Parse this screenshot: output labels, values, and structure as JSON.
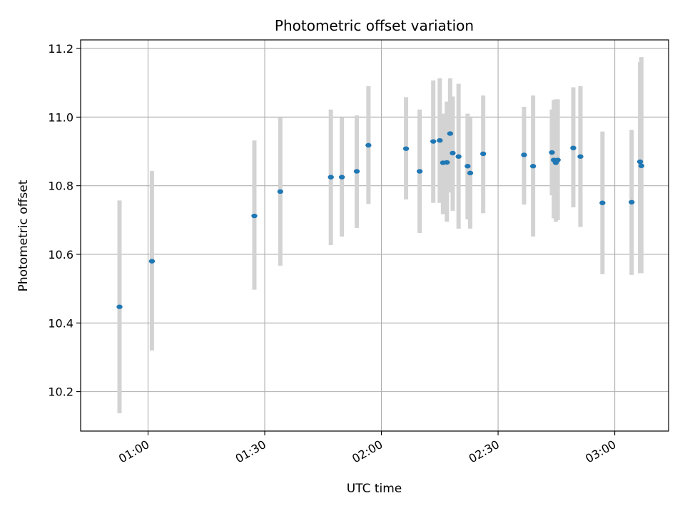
{
  "chart_data": {
    "type": "scatter",
    "title": "Photometric offset variation",
    "xlabel": "UTC time",
    "ylabel": "Photometric offset",
    "x_ticks": [
      "01:00",
      "01:30",
      "02:00",
      "02:30",
      "03:00"
    ],
    "y_ticks": [
      "10.2",
      "10.4",
      "10.6",
      "10.8",
      "11.0",
      "11.2"
    ],
    "xlim": [
      "00:42:40",
      "03:13:50"
    ],
    "ylim": [
      10.085,
      11.225
    ],
    "grid": true,
    "colors": {
      "point": "#1f77b4",
      "errorbar": "#d3d3d3",
      "grid": "#b0b0b0",
      "axis": "#000000"
    },
    "points": [
      {
        "time": "00:52:40",
        "y": 10.447,
        "low": 10.137,
        "high": 10.757
      },
      {
        "time": "01:01:00",
        "y": 10.58,
        "low": 10.32,
        "high": 10.843
      },
      {
        "time": "01:27:20",
        "y": 10.712,
        "low": 10.497,
        "high": 10.932
      },
      {
        "time": "01:34:00",
        "y": 10.783,
        "low": 10.567,
        "high": 11.0
      },
      {
        "time": "01:47:00",
        "y": 10.825,
        "low": 10.627,
        "high": 11.022
      },
      {
        "time": "01:49:50",
        "y": 10.825,
        "low": 10.652,
        "high": 11.0
      },
      {
        "time": "01:53:40",
        "y": 10.842,
        "low": 10.677,
        "high": 11.005
      },
      {
        "time": "01:56:40",
        "y": 10.918,
        "low": 10.747,
        "high": 11.09
      },
      {
        "time": "02:06:20",
        "y": 10.908,
        "low": 10.76,
        "high": 11.058
      },
      {
        "time": "02:09:50",
        "y": 10.842,
        "low": 10.662,
        "high": 11.022
      },
      {
        "time": "02:13:20",
        "y": 10.929,
        "low": 10.75,
        "high": 11.107
      },
      {
        "time": "02:15:00",
        "y": 10.932,
        "low": 10.75,
        "high": 11.113
      },
      {
        "time": "02:15:50",
        "y": 10.867,
        "low": 10.717,
        "high": 11.01
      },
      {
        "time": "02:16:50",
        "y": 10.868,
        "low": 10.695,
        "high": 11.045
      },
      {
        "time": "02:17:40",
        "y": 10.952,
        "low": 10.78,
        "high": 11.113
      },
      {
        "time": "02:18:20",
        "y": 10.895,
        "low": 10.727,
        "high": 11.06
      },
      {
        "time": "02:19:50",
        "y": 10.885,
        "low": 10.675,
        "high": 11.097
      },
      {
        "time": "02:22:10",
        "y": 10.857,
        "low": 10.702,
        "high": 11.01
      },
      {
        "time": "02:22:50",
        "y": 10.837,
        "low": 10.675,
        "high": 11.0
      },
      {
        "time": "02:26:10",
        "y": 10.893,
        "low": 10.72,
        "high": 11.063
      },
      {
        "time": "02:36:40",
        "y": 10.89,
        "low": 10.745,
        "high": 11.03
      },
      {
        "time": "02:39:00",
        "y": 10.857,
        "low": 10.652,
        "high": 11.063
      },
      {
        "time": "02:43:50",
        "y": 10.897,
        "low": 10.772,
        "high": 11.022
      },
      {
        "time": "02:44:20",
        "y": 10.875,
        "low": 10.705,
        "high": 11.05
      },
      {
        "time": "02:44:50",
        "y": 10.867,
        "low": 10.695,
        "high": 11.052
      },
      {
        "time": "02:45:20",
        "y": 10.875,
        "low": 10.7,
        "high": 11.052
      },
      {
        "time": "02:49:20",
        "y": 10.91,
        "low": 10.737,
        "high": 11.087
      },
      {
        "time": "02:51:10",
        "y": 10.885,
        "low": 10.68,
        "high": 11.09
      },
      {
        "time": "02:56:50",
        "y": 10.75,
        "low": 10.542,
        "high": 10.958
      },
      {
        "time": "03:04:20",
        "y": 10.752,
        "low": 10.54,
        "high": 10.963
      },
      {
        "time": "03:06:30",
        "y": 10.87,
        "low": 10.545,
        "high": 11.16
      },
      {
        "time": "03:06:50",
        "y": 10.858,
        "low": 10.545,
        "high": 11.175
      }
    ]
  }
}
